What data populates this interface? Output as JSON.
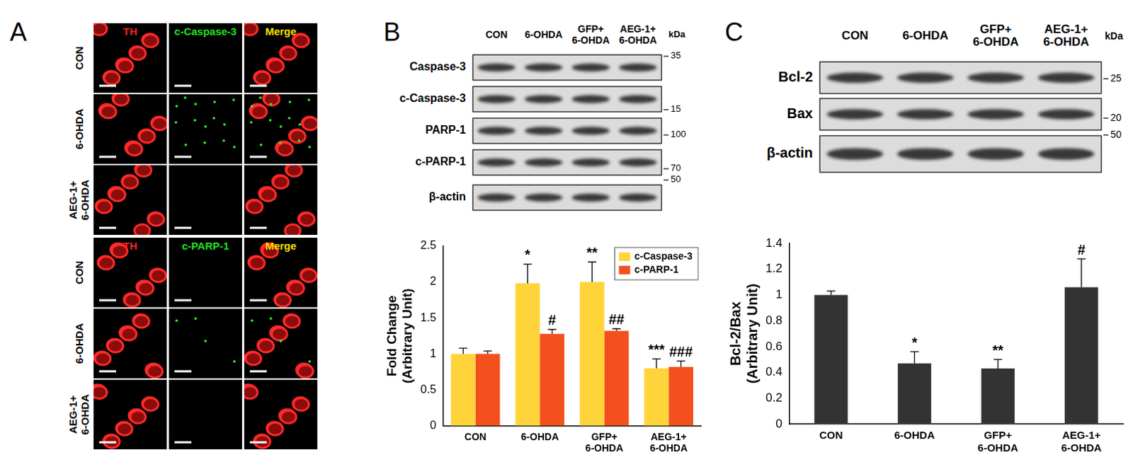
{
  "panel_labels": [
    "A",
    "B",
    "C"
  ],
  "panel_A": {
    "blocks": [
      {
        "stains": [
          "TH",
          "c-Caspase-3",
          "Merge"
        ],
        "rows": [
          "CON",
          "6-OHDA",
          "AEG-1+\n6-OHDA"
        ]
      },
      {
        "stains": [
          "TH",
          "c-PARP-1",
          "Merge"
        ],
        "rows": [
          "CON",
          "6-OHDA",
          "AEG-1+\n6-OHDA"
        ]
      }
    ]
  },
  "blot_B": {
    "lanes": [
      "CON",
      "6-OHDA",
      "GFP+\n6-OHDA",
      "AEG-1+\n6-OHDA"
    ],
    "unit": "kDa",
    "rows": [
      "Caspase-3",
      "c-Caspase-3",
      "PARP-1",
      "c-PARP-1",
      "β-actin"
    ],
    "markers": [
      35,
      15,
      100,
      70,
      50
    ]
  },
  "blot_C": {
    "lanes": [
      "CON",
      "6-OHDA",
      "GFP+\n6-OHDA",
      "AEG-1+\n6-OHDA"
    ],
    "unit": "kDa",
    "rows": [
      "Bcl-2",
      "Bax",
      "β-actin"
    ],
    "markers": [
      25,
      20,
      50
    ]
  },
  "chart_data": [
    {
      "type": "bar",
      "y_label": "Fold Change\n(Arbitrary Unit)",
      "categories": [
        "CON",
        "6-OHDA",
        "GFP+\n6-OHDA",
        "AEG-1+\n6-OHDA"
      ],
      "ylim": [
        0,
        2.5
      ],
      "yticks": [
        0,
        0.5,
        1,
        1.5,
        2,
        2.5
      ],
      "grid": false,
      "legend": "upper right",
      "series": [
        {
          "name": "c-Caspase-3",
          "color": "#ffd43b",
          "values": [
            1.0,
            1.98,
            2.0,
            0.8
          ],
          "errors": [
            0.08,
            0.27,
            0.28,
            0.13
          ],
          "significance": [
            null,
            "*",
            "**",
            "***"
          ]
        },
        {
          "name": "c-PARP-1",
          "color": "#f4501e",
          "values": [
            1.0,
            1.28,
            1.32,
            0.82
          ],
          "errors": [
            0.04,
            0.06,
            0.03,
            0.08
          ],
          "significance": [
            null,
            "#",
            "##",
            "###"
          ]
        }
      ]
    },
    {
      "type": "bar",
      "y_label": "Bcl-2/Bax\n(Arbitrary Unit)",
      "categories": [
        "CON",
        "6-OHDA",
        "GFP+\n6-OHDA",
        "AEG-1+\n6-OHDA"
      ],
      "ylim": [
        0,
        1.4
      ],
      "yticks": [
        0,
        0.2,
        0.4,
        0.6,
        0.8,
        1,
        1.2,
        1.4
      ],
      "grid": false,
      "color": "#333333",
      "values": [
        1.0,
        0.47,
        0.43,
        1.06
      ],
      "errors": [
        0.03,
        0.09,
        0.07,
        0.22
      ],
      "significance": [
        null,
        "*",
        "**",
        "#"
      ]
    }
  ]
}
